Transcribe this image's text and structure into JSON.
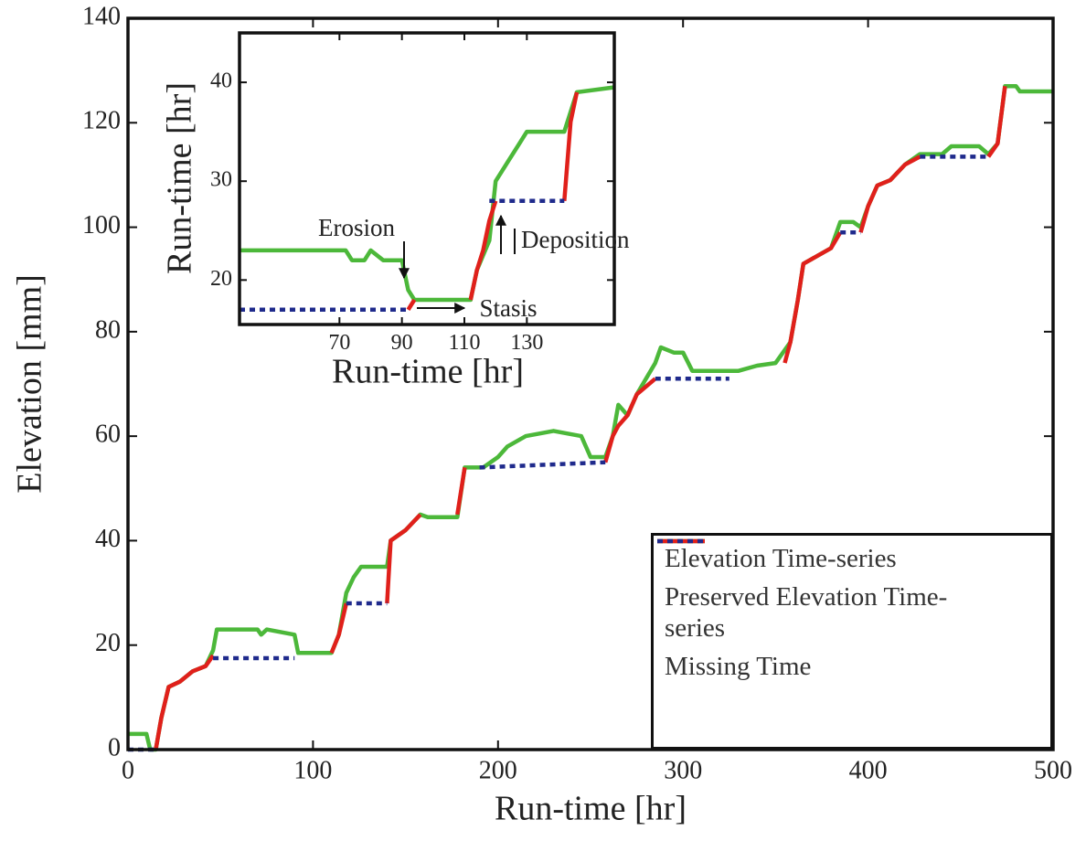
{
  "chart_data": [
    {
      "type": "line",
      "xlabel": "Run-time [hr]",
      "ylabel": "Elevation [mm]",
      "xlim": [
        0,
        500
      ],
      "ylim": [
        0,
        140
      ],
      "xticks": [
        0,
        100,
        200,
        300,
        400,
        500
      ],
      "yticks": [
        0,
        20,
        40,
        60,
        80,
        100,
        120,
        140
      ],
      "legend": "lower right",
      "series": [
        {
          "name": "Elevation Time-series",
          "color": "#4cb83a",
          "linestyle": "solid",
          "x": [
            0,
            10,
            12,
            15,
            18,
            22,
            28,
            35,
            42,
            46,
            48,
            70,
            72,
            75,
            90,
            92,
            110,
            114,
            118,
            122,
            126,
            140,
            142,
            150,
            158,
            162,
            178,
            182,
            192,
            200,
            205,
            215,
            230,
            245,
            250,
            258,
            262,
            265,
            270,
            275,
            285,
            288,
            295,
            300,
            305,
            330,
            340,
            350,
            358,
            362,
            365,
            380,
            385,
            392,
            396,
            400,
            405,
            412,
            420,
            428,
            440,
            445,
            460,
            465,
            470,
            474,
            480,
            482,
            500
          ],
          "values": [
            3,
            3,
            0,
            0,
            6,
            12,
            13,
            15,
            16,
            19,
            23,
            23,
            22,
            23,
            22,
            18.5,
            18.5,
            22,
            30,
            33,
            35,
            35,
            40,
            42,
            45,
            44.5,
            44.5,
            54,
            54,
            56,
            58,
            60,
            61,
            60,
            56,
            56,
            60,
            66,
            64,
            68,
            74,
            77,
            76,
            76,
            72.5,
            72.5,
            73.5,
            74,
            78,
            86,
            93,
            96,
            101,
            101,
            100,
            104,
            108,
            109,
            112,
            114,
            114,
            115.5,
            115.5,
            114,
            116,
            127,
            127,
            126,
            126
          ]
        },
        {
          "name": "Preserved Elevation Time-series",
          "color": "#e0201b",
          "linestyle": "solid",
          "x": [
            15,
            18,
            22,
            28,
            35,
            42,
            46,
            null,
            110,
            114,
            118,
            null,
            140,
            142,
            150,
            158,
            null,
            178,
            182,
            null,
            258,
            262,
            265,
            270,
            275,
            285,
            null,
            355,
            358,
            362,
            365,
            380,
            385,
            null,
            396,
            400,
            405,
            412,
            420,
            428,
            null,
            465,
            470,
            474
          ],
          "values": [
            0,
            6,
            12,
            13,
            15,
            16,
            18,
            null,
            18.5,
            22,
            28,
            null,
            28,
            40,
            42,
            45,
            null,
            45,
            54,
            null,
            55,
            60,
            62,
            64,
            68,
            71,
            null,
            74,
            78,
            86,
            93,
            96,
            99,
            null,
            99,
            104,
            108,
            109,
            112,
            113.5,
            null,
            113.5,
            116,
            127
          ]
        },
        {
          "name": "Missing Time",
          "color": "#1f2a8c",
          "linestyle": "dotted",
          "x": [
            0,
            15,
            null,
            46,
            90,
            null,
            118,
            140,
            null,
            190,
            258,
            null,
            285,
            325,
            null,
            385,
            396,
            null,
            428,
            465
          ],
          "values": [
            0,
            0,
            null,
            17.5,
            17.5,
            null,
            28,
            28,
            null,
            54,
            55,
            null,
            71,
            71,
            null,
            99,
            99,
            null,
            113.5,
            113.5
          ]
        }
      ]
    },
    {
      "type": "line",
      "xlabel": "Run-time [hr]",
      "ylabel": "Run-time [hr]",
      "xlim": [
        38,
        158
      ],
      "ylim": [
        15.5,
        45
      ],
      "xticks": [
        70,
        90,
        110,
        130
      ],
      "yticks": [
        20,
        30,
        40
      ],
      "annotations": [
        "Erosion",
        "Stasis",
        "Deposition"
      ],
      "series": [
        {
          "color": "#4cb83a",
          "linestyle": "solid",
          "x": [
            38,
            72,
            74,
            78,
            80,
            84,
            90,
            92,
            94,
            112,
            114,
            118,
            120,
            124,
            128,
            130,
            142,
            146,
            158
          ],
          "values": [
            23,
            23,
            22,
            22,
            23,
            22,
            22,
            19,
            18,
            18,
            21,
            24,
            30,
            32,
            34,
            35,
            35,
            39,
            39.5
          ]
        },
        {
          "color": "#e0201b",
          "linestyle": "solid",
          "x": [
            92,
            94,
            null,
            112,
            114,
            116,
            118,
            120,
            null,
            142,
            144,
            146
          ],
          "values": [
            17,
            18,
            null,
            18,
            21,
            23,
            26,
            28,
            null,
            28,
            36,
            39
          ]
        },
        {
          "color": "#1f2a8c",
          "linestyle": "dotted",
          "x": [
            38,
            92,
            null,
            118,
            142
          ],
          "values": [
            17,
            17,
            null,
            28,
            28
          ]
        }
      ]
    }
  ]
}
